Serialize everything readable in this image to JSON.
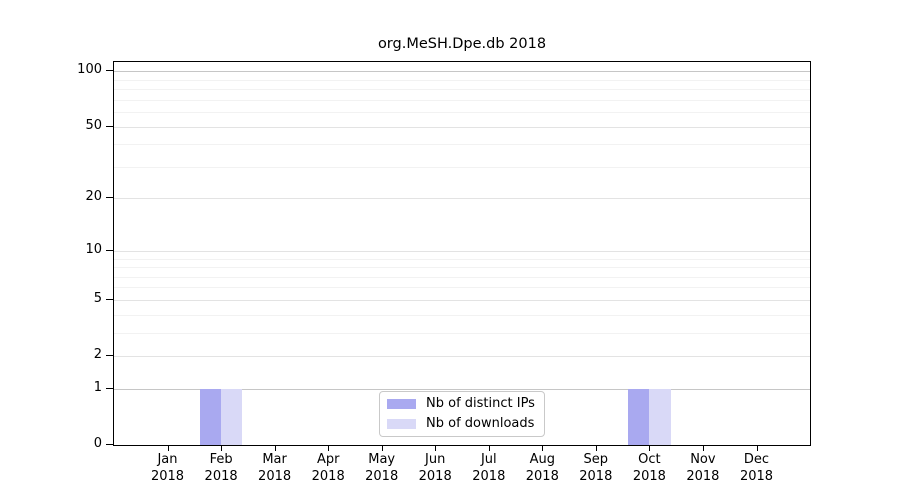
{
  "figure": {
    "title": "org.MeSH.Dpe.db 2018"
  },
  "chart_data": {
    "type": "bar",
    "title": "org.MeSH.Dpe.db 2018",
    "xlabel": "",
    "ylabel": "",
    "categories": [
      "Jan\n2018",
      "Feb\n2018",
      "Mar\n2018",
      "Apr\n2018",
      "May\n2018",
      "Jun\n2018",
      "Jul\n2018",
      "Aug\n2018",
      "Sep\n2018",
      "Oct\n2018",
      "Nov\n2018",
      "Dec\n2018"
    ],
    "series": [
      {
        "name": "Nb of distinct IPs",
        "color": "#a9a9f0",
        "values": [
          0,
          1,
          0,
          0,
          0,
          0,
          0,
          0,
          0,
          1,
          0,
          0
        ]
      },
      {
        "name": "Nb of downloads",
        "color": "#d9d9f7",
        "values": [
          0,
          1,
          0,
          0,
          0,
          0,
          0,
          0,
          0,
          1,
          0,
          0
        ]
      }
    ],
    "y_scale": "log1p",
    "ylim": [
      0,
      112
    ],
    "y_axis_ticks": [
      0,
      1,
      2,
      5,
      10,
      20,
      50,
      100
    ],
    "y_gridlines_major": [
      1,
      2,
      5,
      10,
      20,
      50,
      100
    ],
    "y_gridlines_minor": [
      3,
      4,
      6,
      7,
      8,
      9,
      30,
      40,
      60,
      70,
      80,
      90
    ],
    "y_gridlines_emphasized": [
      1,
      100
    ],
    "grid": "on",
    "legend_position": "bottom-center",
    "colors": {
      "axis": "#000000",
      "text": "#000000",
      "grid_major": "#e3e3e3",
      "grid_minor": "#f2f2f2",
      "grid_emphasized": "#c6c6c6",
      "legend_border": "#c9c9c9",
      "background": "#ffffff"
    }
  }
}
